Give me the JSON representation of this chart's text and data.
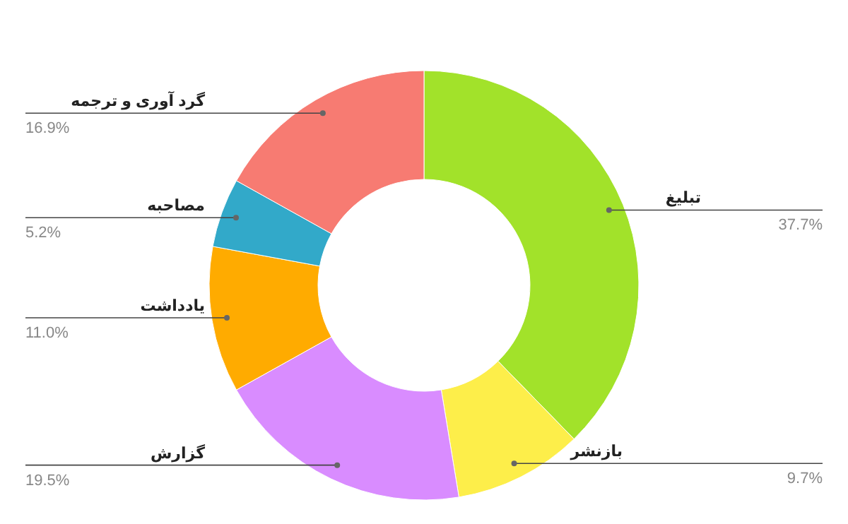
{
  "chart_data": {
    "type": "donut",
    "categories": [
      "تبلیغ",
      "بازنشر",
      "گزارش",
      "یادداشت",
      "مصاحبه",
      "گرد آوری و ترجمه"
    ],
    "values": [
      37.7,
      9.7,
      19.5,
      11.0,
      5.2,
      16.9
    ],
    "value_labels": [
      "37.7%",
      "9.7%",
      "19.5%",
      "11.0%",
      "5.2%",
      "16.9%"
    ],
    "colors": [
      "#a2e22a",
      "#fdee4a",
      "#d98cff",
      "#ffab00",
      "#32a9c9",
      "#f77b72"
    ]
  }
}
